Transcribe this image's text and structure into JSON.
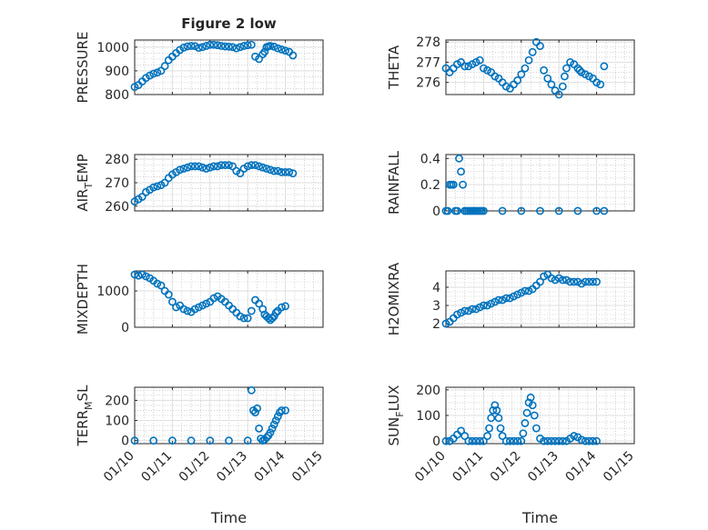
{
  "figure": {
    "title": "Figure 2 low",
    "x_axis_label": "Time",
    "x_tick_labels": [
      "01/10",
      "01/11",
      "01/12",
      "01/13",
      "01/14",
      "01/15"
    ],
    "marker_color": "#0072bd"
  },
  "chart_data": [
    {
      "type": "scatter",
      "ylabel": "PRESSURE",
      "xlim": [
        10,
        15
      ],
      "ylim": [
        800,
        1030
      ],
      "yticks": [
        800,
        900,
        1000
      ],
      "show_x_ticklabels": false,
      "title": "Figure 2 low",
      "x": [
        10.0,
        10.1,
        10.2,
        10.3,
        10.4,
        10.5,
        10.6,
        10.7,
        10.8,
        10.9,
        11.0,
        11.1,
        11.2,
        11.3,
        11.4,
        11.5,
        11.6,
        11.7,
        11.8,
        11.9,
        12.0,
        12.1,
        12.2,
        12.3,
        12.4,
        12.5,
        12.6,
        12.7,
        12.8,
        12.9,
        13.0,
        13.1,
        13.2,
        13.3,
        13.4,
        13.45,
        13.5,
        13.55,
        13.6,
        13.7,
        13.8,
        13.9,
        14.0,
        14.1,
        14.2
      ],
      "y": [
        832,
        840,
        855,
        870,
        880,
        888,
        893,
        900,
        920,
        945,
        960,
        975,
        988,
        998,
        1003,
        1005,
        1004,
        997,
        1000,
        1005,
        1010,
        1010,
        1008,
        1005,
        1003,
        1002,
        1000,
        995,
        1000,
        1005,
        1008,
        1010,
        960,
        950,
        970,
        980,
        1000,
        1003,
        1005,
        1002,
        995,
        990,
        985,
        980,
        965
      ]
    },
    {
      "type": "scatter",
      "ylabel": "THETA",
      "xlim": [
        10,
        15
      ],
      "ylim": [
        275.4,
        278.1
      ],
      "yticks": [
        276,
        277,
        278
      ],
      "show_x_ticklabels": false,
      "x": [
        10.0,
        10.1,
        10.2,
        10.3,
        10.4,
        10.5,
        10.6,
        10.7,
        10.8,
        10.9,
        11.0,
        11.1,
        11.2,
        11.3,
        11.4,
        11.5,
        11.6,
        11.7,
        11.8,
        11.9,
        12.0,
        12.1,
        12.2,
        12.3,
        12.4,
        12.5,
        12.6,
        12.7,
        12.8,
        12.9,
        13.0,
        13.1,
        13.15,
        13.2,
        13.3,
        13.4,
        13.5,
        13.55,
        13.6,
        13.7,
        13.8,
        13.9,
        14.0,
        14.1,
        14.2
      ],
      "y": [
        276.7,
        276.5,
        276.7,
        276.9,
        277.0,
        276.8,
        276.8,
        276.9,
        277.0,
        277.1,
        276.7,
        276.6,
        276.5,
        276.3,
        276.2,
        276.0,
        275.8,
        275.7,
        275.9,
        276.1,
        276.4,
        276.7,
        277.1,
        277.5,
        278.0,
        277.8,
        276.6,
        276.2,
        275.9,
        275.6,
        275.4,
        275.8,
        276.3,
        276.7,
        277.0,
        276.9,
        276.7,
        276.6,
        276.5,
        276.4,
        276.3,
        276.2,
        276.0,
        275.9,
        276.8
      ]
    },
    {
      "type": "scatter",
      "ylabel": "AIR_TEMP",
      "xlim": [
        10,
        15
      ],
      "ylim": [
        258,
        282
      ],
      "yticks": [
        260,
        270,
        280
      ],
      "show_x_ticklabels": false,
      "x": [
        10.0,
        10.1,
        10.2,
        10.3,
        10.4,
        10.5,
        10.6,
        10.7,
        10.8,
        10.9,
        11.0,
        11.1,
        11.2,
        11.3,
        11.4,
        11.5,
        11.6,
        11.7,
        11.8,
        11.9,
        12.0,
        12.1,
        12.2,
        12.3,
        12.4,
        12.5,
        12.6,
        12.7,
        12.8,
        12.9,
        13.0,
        13.1,
        13.2,
        13.3,
        13.4,
        13.5,
        13.6,
        13.7,
        13.8,
        13.9,
        14.0,
        14.1,
        14.2
      ],
      "y": [
        262,
        263,
        264,
        266,
        267,
        268,
        268.5,
        269,
        270,
        272,
        273.5,
        274.5,
        275.5,
        276,
        276.5,
        277,
        277,
        277,
        276.5,
        276,
        276.5,
        277,
        277,
        277.5,
        277.5,
        277.5,
        277,
        275,
        274,
        276,
        277,
        277.5,
        277.5,
        277,
        276.5,
        276,
        275.5,
        275,
        275,
        274.5,
        274.5,
        274.5,
        274
      ]
    },
    {
      "type": "scatter",
      "ylabel": "RAINFALL",
      "xlim": [
        10,
        15
      ],
      "ylim": [
        0,
        0.43
      ],
      "yticks": [
        0,
        0.2,
        0.4
      ],
      "show_x_ticklabels": false,
      "x": [
        10.0,
        10.05,
        10.1,
        10.15,
        10.2,
        10.25,
        10.3,
        10.35,
        10.4,
        10.45,
        10.5,
        10.55,
        10.6,
        10.65,
        10.7,
        10.75,
        10.8,
        10.85,
        10.9,
        10.95,
        11.0,
        11.5,
        12.0,
        12.5,
        13.0,
        13.5,
        14.0,
        14.2
      ],
      "y": [
        0,
        0,
        0.2,
        0.2,
        0.2,
        0,
        0,
        0.4,
        0.3,
        0.2,
        0,
        0,
        0,
        0,
        0,
        0,
        0,
        0,
        0,
        0,
        0,
        0,
        0,
        0,
        0,
        0,
        0,
        0
      ]
    },
    {
      "type": "scatter",
      "ylabel": "MIXDEPTH",
      "xlim": [
        10,
        15
      ],
      "ylim": [
        0,
        1550
      ],
      "yticks": [
        0,
        1000
      ],
      "show_x_ticklabels": false,
      "x": [
        10.0,
        10.1,
        10.2,
        10.3,
        10.4,
        10.5,
        10.6,
        10.7,
        10.8,
        10.9,
        11.0,
        11.1,
        11.2,
        11.3,
        11.4,
        11.5,
        11.6,
        11.7,
        11.8,
        11.9,
        12.0,
        12.1,
        12.2,
        12.3,
        12.4,
        12.5,
        12.6,
        12.7,
        12.8,
        12.9,
        13.0,
        13.1,
        13.2,
        13.3,
        13.4,
        13.45,
        13.5,
        13.55,
        13.6,
        13.65,
        13.7,
        13.75,
        13.8,
        13.9,
        14.0
      ],
      "y": [
        1450,
        1420,
        1450,
        1400,
        1350,
        1280,
        1200,
        1150,
        1000,
        900,
        700,
        550,
        600,
        500,
        450,
        420,
        500,
        550,
        600,
        650,
        700,
        800,
        850,
        780,
        700,
        600,
        500,
        400,
        300,
        250,
        250,
        450,
        750,
        650,
        500,
        350,
        300,
        250,
        200,
        250,
        300,
        400,
        450,
        550,
        580
      ]
    },
    {
      "type": "scatter",
      "ylabel": "H2OMIXRA",
      "xlim": [
        10,
        15
      ],
      "ylim": [
        1.8,
        4.9
      ],
      "yticks": [
        2,
        3,
        4
      ],
      "show_x_ticklabels": false,
      "x": [
        10.0,
        10.1,
        10.2,
        10.3,
        10.4,
        10.5,
        10.6,
        10.7,
        10.8,
        10.9,
        11.0,
        11.1,
        11.2,
        11.3,
        11.4,
        11.5,
        11.6,
        11.7,
        11.8,
        11.9,
        12.0,
        12.1,
        12.2,
        12.3,
        12.4,
        12.5,
        12.6,
        12.7,
        12.8,
        12.9,
        13.0,
        13.1,
        13.2,
        13.3,
        13.4,
        13.5,
        13.6,
        13.7,
        13.8,
        13.9,
        14.0
      ],
      "y": [
        2.0,
        2.1,
        2.3,
        2.5,
        2.6,
        2.7,
        2.7,
        2.8,
        2.8,
        2.9,
        3.0,
        3.0,
        3.1,
        3.2,
        3.3,
        3.3,
        3.4,
        3.4,
        3.5,
        3.6,
        3.7,
        3.8,
        3.8,
        3.9,
        4.1,
        4.3,
        4.6,
        4.7,
        4.5,
        4.4,
        4.5,
        4.4,
        4.4,
        4.3,
        4.3,
        4.3,
        4.2,
        4.3,
        4.3,
        4.3,
        4.3
      ]
    },
    {
      "type": "scatter",
      "ylabel": "TERR_MSL",
      "xlim": [
        10,
        15
      ],
      "ylim": [
        -15,
        265
      ],
      "yticks": [
        0,
        100,
        200
      ],
      "show_x_ticklabels": true,
      "x": [
        10.0,
        10.5,
        11.0,
        11.5,
        12.0,
        12.5,
        13.0,
        13.1,
        13.15,
        13.2,
        13.25,
        13.3,
        13.35,
        13.4,
        13.45,
        13.5,
        13.55,
        13.6,
        13.65,
        13.7,
        13.75,
        13.8,
        13.85,
        13.9,
        14.0
      ],
      "y": [
        0,
        0,
        0,
        0,
        0,
        0,
        0,
        250,
        150,
        140,
        160,
        60,
        10,
        0,
        5,
        15,
        25,
        40,
        60,
        80,
        100,
        120,
        140,
        150,
        150
      ]
    },
    {
      "type": "scatter",
      "ylabel": "SUN_FLUX",
      "xlim": [
        10,
        15
      ],
      "ylim": [
        -10,
        210
      ],
      "yticks": [
        0,
        100,
        200
      ],
      "show_x_ticklabels": true,
      "x": [
        10.0,
        10.1,
        10.2,
        10.3,
        10.4,
        10.5,
        10.6,
        10.7,
        10.8,
        10.9,
        11.0,
        11.1,
        11.15,
        11.2,
        11.25,
        11.3,
        11.35,
        11.4,
        11.45,
        11.5,
        11.6,
        11.7,
        11.8,
        11.9,
        12.0,
        12.05,
        12.1,
        12.15,
        12.2,
        12.25,
        12.3,
        12.35,
        12.4,
        12.5,
        12.6,
        12.7,
        12.8,
        12.9,
        13.0,
        13.1,
        13.2,
        13.3,
        13.4,
        13.5,
        13.6,
        13.7,
        13.8,
        13.9,
        14.0
      ],
      "y": [
        0,
        0,
        10,
        25,
        40,
        20,
        0,
        0,
        0,
        0,
        0,
        20,
        50,
        90,
        120,
        140,
        120,
        90,
        50,
        20,
        0,
        0,
        0,
        0,
        0,
        30,
        70,
        110,
        150,
        170,
        140,
        100,
        50,
        10,
        0,
        0,
        0,
        0,
        0,
        0,
        0,
        10,
        20,
        15,
        5,
        0,
        0,
        0,
        0
      ]
    }
  ]
}
